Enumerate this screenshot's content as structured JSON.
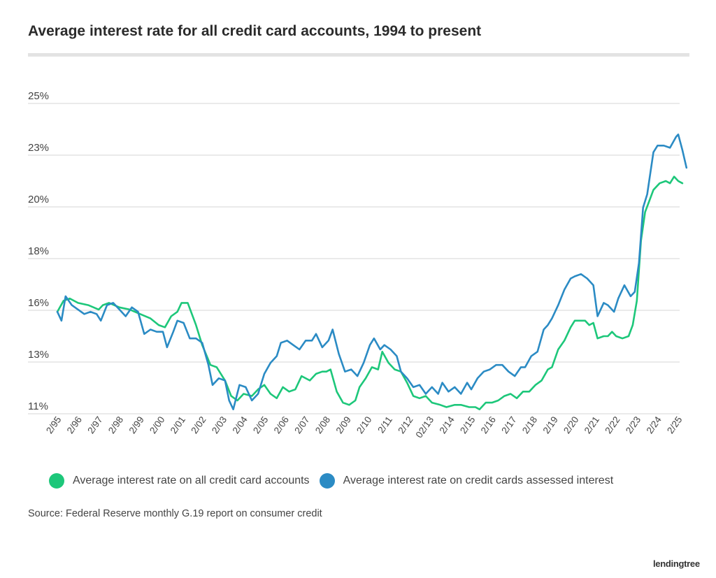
{
  "chart_data": {
    "type": "line",
    "title": "Average interest rate for all credit card accounts, 1994 to present",
    "yticks": [
      "25%",
      "23%",
      "20%",
      "18%",
      "16%",
      "13%",
      "11%"
    ],
    "ylim": [
      11,
      25
    ],
    "grid": true,
    "legend_position": "bottom",
    "x_ticks": [
      "2/95",
      "2/96",
      "2/97",
      "2/98",
      "2/99",
      "2/00",
      "2/01",
      "2/02",
      "2/03",
      "2/04",
      "2/05",
      "2/06",
      "2/07",
      "2/08",
      "2/09",
      "2/10",
      "2/11",
      "2/12",
      "02/13",
      "2/14",
      "2/15",
      "2/16",
      "2/17",
      "2/18",
      "2/19",
      "2/20",
      "2/21",
      "2/22",
      "2/23",
      "2/24",
      "2/25"
    ],
    "series": [
      {
        "name": "Average interest rate on all credit card accounts",
        "color": "#1dc77a",
        "points": [
          [
            1995.0,
            15.6
          ],
          [
            1995.3,
            16.1
          ],
          [
            1995.6,
            16.2
          ],
          [
            1996.0,
            16.0
          ],
          [
            1996.5,
            15.9
          ],
          [
            1997.0,
            15.7
          ],
          [
            1997.2,
            15.9
          ],
          [
            1997.5,
            16.0
          ],
          [
            1998.0,
            15.8
          ],
          [
            1998.5,
            15.7
          ],
          [
            1999.0,
            15.5
          ],
          [
            1999.5,
            15.3
          ],
          [
            1999.9,
            15.0
          ],
          [
            2000.2,
            14.9
          ],
          [
            2000.5,
            15.4
          ],
          [
            2000.8,
            15.6
          ],
          [
            2001.0,
            16.0
          ],
          [
            2001.3,
            16.0
          ],
          [
            2001.7,
            15.0
          ],
          [
            2002.0,
            14.1
          ],
          [
            2002.4,
            13.2
          ],
          [
            2002.7,
            13.1
          ],
          [
            2003.1,
            12.5
          ],
          [
            2003.4,
            11.8
          ],
          [
            2003.7,
            11.6
          ],
          [
            2004.0,
            11.9
          ],
          [
            2004.4,
            11.8
          ],
          [
            2004.7,
            12.1
          ],
          [
            2005.0,
            12.3
          ],
          [
            2005.3,
            11.9
          ],
          [
            2005.6,
            11.7
          ],
          [
            2005.9,
            12.2
          ],
          [
            2006.2,
            12.0
          ],
          [
            2006.5,
            12.1
          ],
          [
            2006.8,
            12.7
          ],
          [
            2007.2,
            12.5
          ],
          [
            2007.5,
            12.8
          ],
          [
            2007.8,
            12.9
          ],
          [
            2008.0,
            12.9
          ],
          [
            2008.2,
            13.0
          ],
          [
            2008.5,
            12.0
          ],
          [
            2008.8,
            11.5
          ],
          [
            2009.1,
            11.4
          ],
          [
            2009.4,
            11.6
          ],
          [
            2009.6,
            12.2
          ],
          [
            2009.9,
            12.6
          ],
          [
            2010.2,
            13.1
          ],
          [
            2010.5,
            13.0
          ],
          [
            2010.7,
            13.8
          ],
          [
            2011.0,
            13.3
          ],
          [
            2011.3,
            13.0
          ],
          [
            2011.6,
            12.9
          ],
          [
            2011.9,
            12.4
          ],
          [
            2012.2,
            11.8
          ],
          [
            2012.5,
            11.7
          ],
          [
            2012.8,
            11.8
          ],
          [
            2013.1,
            11.5
          ],
          [
            2013.5,
            11.4
          ],
          [
            2013.8,
            11.3
          ],
          [
            2014.2,
            11.4
          ],
          [
            2014.5,
            11.4
          ],
          [
            2014.9,
            11.3
          ],
          [
            2015.2,
            11.3
          ],
          [
            2015.4,
            11.2
          ],
          [
            2015.7,
            11.5
          ],
          [
            2016.0,
            11.5
          ],
          [
            2016.3,
            11.6
          ],
          [
            2016.6,
            11.8
          ],
          [
            2016.9,
            11.9
          ],
          [
            2017.2,
            11.7
          ],
          [
            2017.5,
            12.0
          ],
          [
            2017.8,
            12.0
          ],
          [
            2018.1,
            12.3
          ],
          [
            2018.4,
            12.5
          ],
          [
            2018.7,
            13.0
          ],
          [
            2018.9,
            13.1
          ],
          [
            2019.2,
            13.9
          ],
          [
            2019.5,
            14.3
          ],
          [
            2019.8,
            14.9
          ],
          [
            2020.0,
            15.2
          ],
          [
            2020.3,
            15.2
          ],
          [
            2020.5,
            15.2
          ],
          [
            2020.7,
            15.0
          ],
          [
            2020.9,
            15.1
          ],
          [
            2021.1,
            14.4
          ],
          [
            2021.4,
            14.5
          ],
          [
            2021.6,
            14.5
          ],
          [
            2021.8,
            14.7
          ],
          [
            2022.0,
            14.5
          ],
          [
            2022.3,
            14.4
          ],
          [
            2022.6,
            14.5
          ],
          [
            2022.8,
            15.0
          ],
          [
            2023.0,
            16.1
          ],
          [
            2023.2,
            18.8
          ],
          [
            2023.4,
            20.1
          ],
          [
            2023.6,
            20.6
          ],
          [
            2023.8,
            21.1
          ],
          [
            2024.1,
            21.4
          ],
          [
            2024.4,
            21.5
          ],
          [
            2024.6,
            21.4
          ],
          [
            2024.8,
            21.7
          ],
          [
            2025.0,
            21.5
          ],
          [
            2025.2,
            21.4
          ]
        ]
      },
      {
        "name": "Average interest rate on credit cards assessed interest",
        "color": "#2b8bc4",
        "points": [
          [
            1995.0,
            15.6
          ],
          [
            1995.2,
            15.2
          ],
          [
            1995.4,
            16.3
          ],
          [
            1995.7,
            15.9
          ],
          [
            1996.0,
            15.7
          ],
          [
            1996.3,
            15.5
          ],
          [
            1996.6,
            15.6
          ],
          [
            1996.9,
            15.5
          ],
          [
            1997.1,
            15.2
          ],
          [
            1997.4,
            15.9
          ],
          [
            1997.7,
            16.0
          ],
          [
            1998.0,
            15.7
          ],
          [
            1998.3,
            15.4
          ],
          [
            1998.6,
            15.8
          ],
          [
            1998.9,
            15.6
          ],
          [
            1999.2,
            14.6
          ],
          [
            1999.5,
            14.8
          ],
          [
            1999.8,
            14.7
          ],
          [
            2000.1,
            14.7
          ],
          [
            2000.3,
            14.0
          ],
          [
            2000.6,
            14.7
          ],
          [
            2000.8,
            15.2
          ],
          [
            2001.1,
            15.1
          ],
          [
            2001.4,
            14.4
          ],
          [
            2001.7,
            14.4
          ],
          [
            2002.0,
            14.2
          ],
          [
            2002.3,
            13.2
          ],
          [
            2002.5,
            12.3
          ],
          [
            2002.8,
            12.6
          ],
          [
            2003.1,
            12.5
          ],
          [
            2003.3,
            11.6
          ],
          [
            2003.5,
            11.2
          ],
          [
            2003.8,
            12.3
          ],
          [
            2004.1,
            12.2
          ],
          [
            2004.4,
            11.6
          ],
          [
            2004.7,
            11.9
          ],
          [
            2005.0,
            12.8
          ],
          [
            2005.3,
            13.3
          ],
          [
            2005.6,
            13.6
          ],
          [
            2005.8,
            14.2
          ],
          [
            2006.1,
            14.3
          ],
          [
            2006.4,
            14.1
          ],
          [
            2006.7,
            13.9
          ],
          [
            2007.0,
            14.3
          ],
          [
            2007.3,
            14.3
          ],
          [
            2007.5,
            14.6
          ],
          [
            2007.8,
            14.0
          ],
          [
            2008.1,
            14.3
          ],
          [
            2008.3,
            14.8
          ],
          [
            2008.6,
            13.7
          ],
          [
            2008.9,
            12.9
          ],
          [
            2009.2,
            13.0
          ],
          [
            2009.5,
            12.7
          ],
          [
            2009.8,
            13.3
          ],
          [
            2010.1,
            14.1
          ],
          [
            2010.3,
            14.4
          ],
          [
            2010.6,
            13.9
          ],
          [
            2010.8,
            14.1
          ],
          [
            2011.1,
            13.9
          ],
          [
            2011.4,
            13.6
          ],
          [
            2011.6,
            12.9
          ],
          [
            2011.9,
            12.6
          ],
          [
            2012.2,
            12.2
          ],
          [
            2012.5,
            12.3
          ],
          [
            2012.8,
            11.9
          ],
          [
            2013.1,
            12.2
          ],
          [
            2013.4,
            11.9
          ],
          [
            2013.6,
            12.4
          ],
          [
            2013.9,
            12.0
          ],
          [
            2014.2,
            12.2
          ],
          [
            2014.5,
            11.9
          ],
          [
            2014.8,
            12.4
          ],
          [
            2015.0,
            12.1
          ],
          [
            2015.3,
            12.6
          ],
          [
            2015.6,
            12.9
          ],
          [
            2015.9,
            13.0
          ],
          [
            2016.2,
            13.2
          ],
          [
            2016.5,
            13.2
          ],
          [
            2016.8,
            12.9
          ],
          [
            2017.1,
            12.7
          ],
          [
            2017.4,
            13.1
          ],
          [
            2017.6,
            13.1
          ],
          [
            2017.9,
            13.6
          ],
          [
            2018.2,
            13.8
          ],
          [
            2018.5,
            14.8
          ],
          [
            2018.7,
            15.0
          ],
          [
            2018.9,
            15.3
          ],
          [
            2019.2,
            15.9
          ],
          [
            2019.5,
            16.6
          ],
          [
            2019.8,
            17.1
          ],
          [
            2020.0,
            17.2
          ],
          [
            2020.3,
            17.3
          ],
          [
            2020.6,
            17.1
          ],
          [
            2020.9,
            16.8
          ],
          [
            2021.1,
            15.4
          ],
          [
            2021.4,
            16.0
          ],
          [
            2021.6,
            15.9
          ],
          [
            2021.9,
            15.6
          ],
          [
            2022.1,
            16.2
          ],
          [
            2022.4,
            16.8
          ],
          [
            2022.7,
            16.3
          ],
          [
            2022.9,
            16.5
          ],
          [
            2023.1,
            17.8
          ],
          [
            2023.3,
            20.3
          ],
          [
            2023.5,
            20.9
          ],
          [
            2023.8,
            22.8
          ],
          [
            2024.0,
            23.1
          ],
          [
            2024.3,
            23.1
          ],
          [
            2024.6,
            23.0
          ],
          [
            2024.9,
            23.5
          ],
          [
            2025.0,
            23.6
          ],
          [
            2025.2,
            22.9
          ],
          [
            2025.4,
            22.1
          ]
        ]
      }
    ]
  },
  "source": "Source: Federal Reserve monthly G.19 report on consumer credit",
  "logo_text": "lendingtree"
}
